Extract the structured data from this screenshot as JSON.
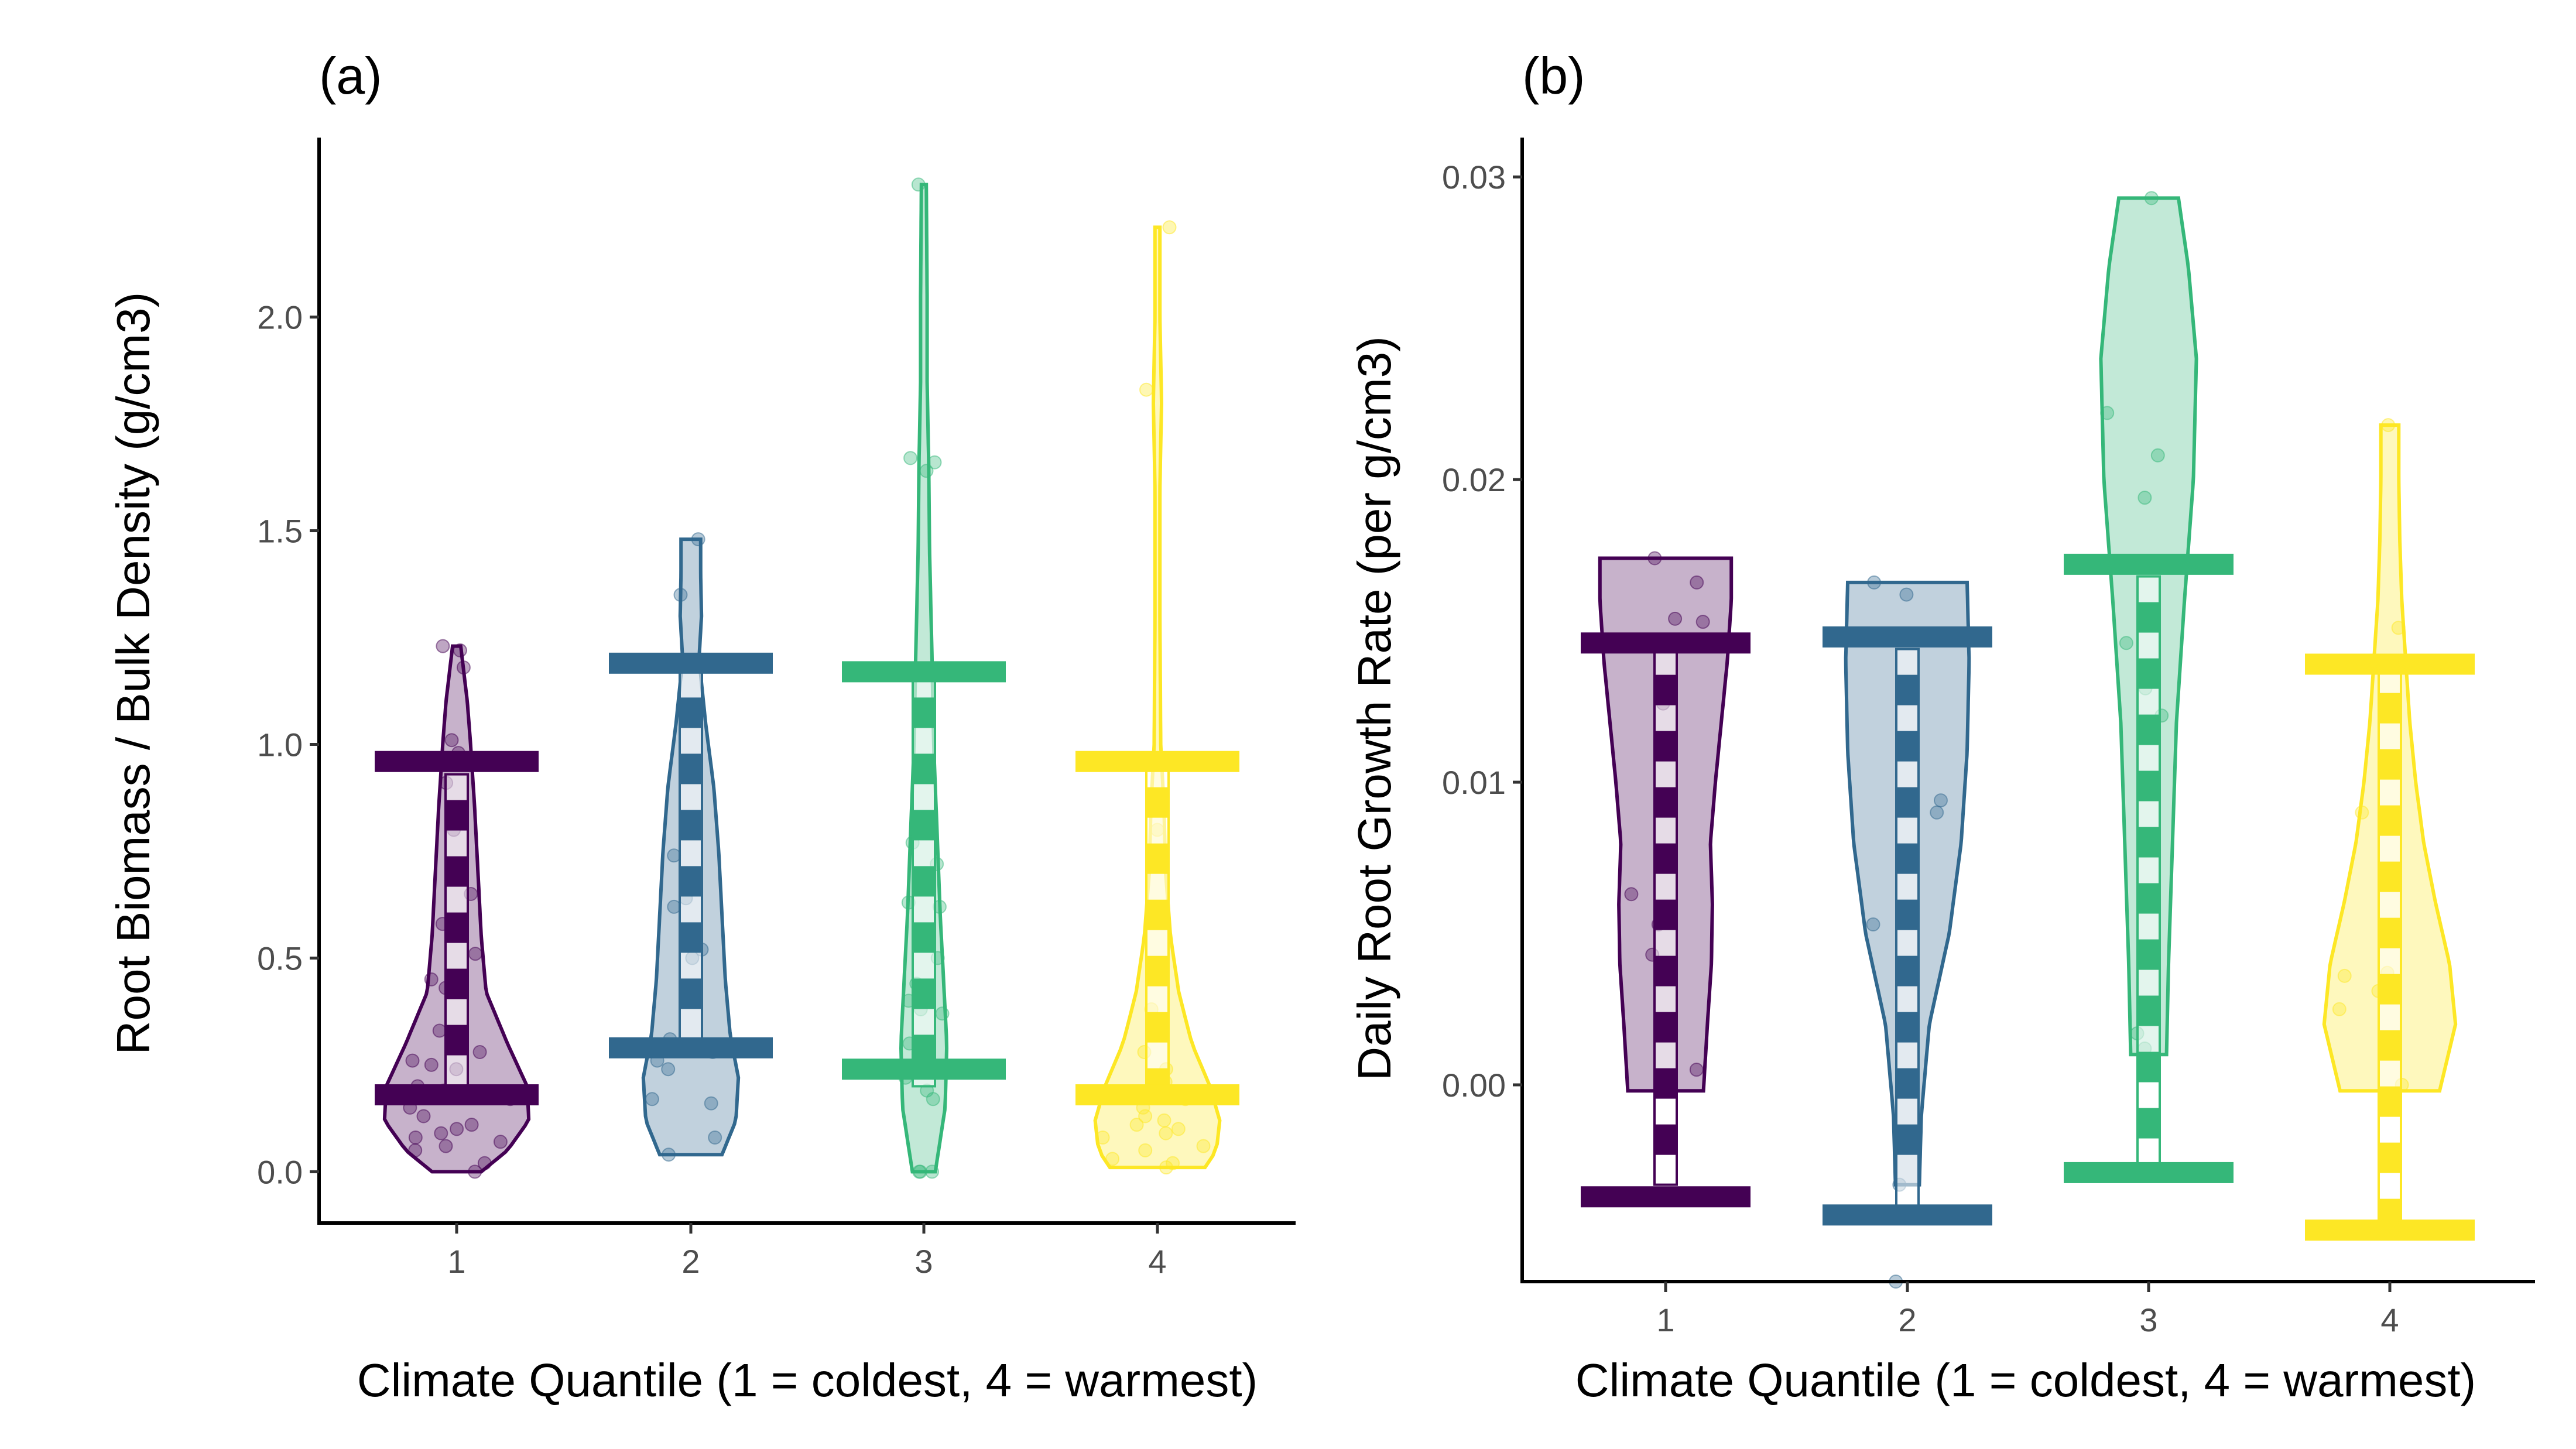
{
  "chart_data": [
    {
      "type": "violin",
      "panel_tag": "(a)",
      "xlabel": "Climate Quantile (1 = coldest, 4 = warmest)",
      "ylabel": "Root Biomass / Bulk Density (g/cm3)",
      "categories": [
        "1",
        "2",
        "3",
        "4"
      ],
      "yticks": [
        0.0,
        0.5,
        1.0,
        1.5,
        2.0
      ],
      "ytick_labels": [
        "0.0",
        "0.5",
        "1.0",
        "1.5",
        "2.0"
      ],
      "ylim": [
        -0.12,
        2.42
      ],
      "colors": [
        "#440154",
        "#31688e",
        "#35b779",
        "#fde725"
      ],
      "groups": [
        {
          "category": "1",
          "violin_min": 0.0,
          "violin_max": 1.23,
          "width_profile": [
            [
              0.0,
              0.3
            ],
            [
              0.05,
              0.62
            ],
            [
              0.12,
              0.88
            ],
            [
              0.2,
              0.86
            ],
            [
              0.3,
              0.62
            ],
            [
              0.42,
              0.36
            ],
            [
              0.55,
              0.3
            ],
            [
              0.7,
              0.26
            ],
            [
              0.85,
              0.22
            ],
            [
              1.0,
              0.17
            ],
            [
              1.1,
              0.13
            ],
            [
              1.23,
              0.05
            ]
          ],
          "whisker_low": 0.18,
          "whisker_high": 0.96,
          "box_low": 0.2,
          "box_high": 0.93,
          "points": [
            0.0,
            0.02,
            0.05,
            0.06,
            0.07,
            0.08,
            0.09,
            0.1,
            0.11,
            0.13,
            0.15,
            0.17,
            0.19,
            0.2,
            0.24,
            0.25,
            0.26,
            0.28,
            0.33,
            0.43,
            0.45,
            0.51,
            0.58,
            0.65,
            0.8,
            0.91,
            0.98,
            1.01,
            1.18,
            1.22,
            1.23
          ]
        },
        {
          "category": "2",
          "violin_min": 0.04,
          "violin_max": 1.48,
          "width_profile": [
            [
              0.04,
              0.38
            ],
            [
              0.12,
              0.55
            ],
            [
              0.22,
              0.58
            ],
            [
              0.32,
              0.48
            ],
            [
              0.45,
              0.42
            ],
            [
              0.6,
              0.38
            ],
            [
              0.75,
              0.34
            ],
            [
              0.9,
              0.28
            ],
            [
              1.05,
              0.18
            ],
            [
              1.2,
              0.1
            ],
            [
              1.3,
              0.13
            ],
            [
              1.4,
              0.12
            ],
            [
              1.48,
              0.12
            ]
          ],
          "whisker_low": 0.29,
          "whisker_high": 1.19,
          "box_low": 0.28,
          "box_high": 1.17,
          "points": [
            0.04,
            0.08,
            0.16,
            0.17,
            0.24,
            0.26,
            0.28,
            0.31,
            0.5,
            0.52,
            0.62,
            0.64,
            0.74,
            0.93,
            1.35,
            1.48
          ]
        },
        {
          "category": "3",
          "violin_min": 0.0,
          "violin_max": 2.31,
          "width_profile": [
            [
              0.0,
              0.14
            ],
            [
              0.15,
              0.26
            ],
            [
              0.3,
              0.28
            ],
            [
              0.45,
              0.24
            ],
            [
              0.6,
              0.2
            ],
            [
              0.8,
              0.16
            ],
            [
              1.0,
              0.12
            ],
            [
              1.2,
              0.1
            ],
            [
              1.45,
              0.07
            ],
            [
              1.65,
              0.06
            ],
            [
              1.85,
              0.04
            ],
            [
              2.05,
              0.04
            ],
            [
              2.31,
              0.03
            ]
          ],
          "whisker_low": 0.24,
          "whisker_high": 1.17,
          "box_low": 0.2,
          "box_high": 1.17,
          "points": [
            0.0,
            0.0,
            0.0,
            0.17,
            0.19,
            0.22,
            0.3,
            0.37,
            0.38,
            0.4,
            0.44,
            0.5,
            0.62,
            0.63,
            0.72,
            0.77,
            1.64,
            1.66,
            1.67,
            2.31
          ]
        },
        {
          "category": "4",
          "violin_min": 0.01,
          "violin_max": 2.21,
          "width_profile": [
            [
              0.01,
              0.58
            ],
            [
              0.05,
              0.72
            ],
            [
              0.12,
              0.76
            ],
            [
              0.2,
              0.64
            ],
            [
              0.3,
              0.42
            ],
            [
              0.42,
              0.26
            ],
            [
              0.55,
              0.16
            ],
            [
              0.7,
              0.1
            ],
            [
              0.85,
              0.08
            ],
            [
              1.0,
              0.04
            ],
            [
              1.3,
              0.03
            ],
            [
              1.6,
              0.03
            ],
            [
              1.8,
              0.05
            ],
            [
              2.0,
              0.03
            ],
            [
              2.21,
              0.03
            ]
          ],
          "whisker_low": 0.18,
          "whisker_high": 0.96,
          "box_low": 0.17,
          "box_high": 0.96,
          "points": [
            0.01,
            0.02,
            0.03,
            0.05,
            0.06,
            0.08,
            0.09,
            0.1,
            0.11,
            0.12,
            0.13,
            0.15,
            0.17,
            0.19,
            0.21,
            0.24,
            0.28,
            0.38,
            0.8,
            0.86,
            1.83,
            2.21
          ]
        }
      ]
    },
    {
      "type": "violin",
      "panel_tag": "(b)",
      "xlabel": "Climate Quantile (1 = coldest, 4 = warmest)",
      "ylabel": "Daily Root Growth Rate (per g/cm3)",
      "categories": [
        "1",
        "2",
        "3",
        "4"
      ],
      "yticks": [
        0.0,
        0.01,
        0.02,
        0.03
      ],
      "ytick_labels": [
        "0.00",
        "0.01",
        "0.02",
        "0.03"
      ],
      "ylim": [
        -0.0065,
        0.0313
      ],
      "colors": [
        "#440154",
        "#31688e",
        "#35b779",
        "#fde725"
      ],
      "groups": [
        {
          "category": "1",
          "violin_min": -0.0002,
          "violin_max": 0.0174,
          "width_profile": [
            [
              -0.0002,
              0.38
            ],
            [
              0.002,
              0.42
            ],
            [
              0.004,
              0.46
            ],
            [
              0.006,
              0.47
            ],
            [
              0.008,
              0.45
            ],
            [
              0.01,
              0.5
            ],
            [
              0.012,
              0.56
            ],
            [
              0.014,
              0.62
            ],
            [
              0.016,
              0.66
            ],
            [
              0.0174,
              0.66
            ]
          ],
          "whisker_low": -0.0037,
          "whisker_high": 0.0146,
          "box_low": -0.0033,
          "box_high": 0.0144,
          "points": [
            0.0005,
            0.0043,
            0.0053,
            0.0063,
            0.0126,
            0.0132,
            0.0153,
            0.0154,
            0.0166,
            0.0174
          ]
        },
        {
          "category": "2",
          "violin_min": -0.0033,
          "violin_max": 0.0166,
          "width_profile": [
            [
              -0.0033,
              0.12
            ],
            [
              -0.001,
              0.14
            ],
            [
              0.002,
              0.22
            ],
            [
              0.005,
              0.42
            ],
            [
              0.008,
              0.54
            ],
            [
              0.011,
              0.6
            ],
            [
              0.014,
              0.62
            ],
            [
              0.0166,
              0.6
            ]
          ],
          "whisker_low": -0.0043,
          "whisker_high": 0.0148,
          "box_low": -0.0041,
          "box_high": 0.0144,
          "points": [
            -0.0065,
            -0.0033,
            0.0053,
            0.009,
            0.0094,
            0.0162,
            0.0166
          ]
        },
        {
          "category": "3",
          "violin_min": 0.001,
          "violin_max": 0.0293,
          "width_profile": [
            [
              0.001,
              0.18
            ],
            [
              0.004,
              0.2
            ],
            [
              0.008,
              0.24
            ],
            [
              0.012,
              0.28
            ],
            [
              0.016,
              0.36
            ],
            [
              0.02,
              0.45
            ],
            [
              0.024,
              0.48
            ],
            [
              0.027,
              0.4
            ],
            [
              0.0293,
              0.3
            ]
          ],
          "whisker_low": -0.0029,
          "whisker_high": 0.0172,
          "box_low": -0.0029,
          "box_high": 0.0168,
          "points": [
            0.0012,
            0.0017,
            0.0122,
            0.0131,
            0.0146,
            0.0194,
            0.0208,
            0.0222,
            0.0293
          ]
        },
        {
          "category": "4",
          "violin_min": -0.0002,
          "violin_max": 0.0218,
          "width_profile": [
            [
              -0.0002,
              0.5
            ],
            [
              0.002,
              0.66
            ],
            [
              0.004,
              0.6
            ],
            [
              0.006,
              0.46
            ],
            [
              0.008,
              0.34
            ],
            [
              0.01,
              0.26
            ],
            [
              0.012,
              0.2
            ],
            [
              0.014,
              0.16
            ],
            [
              0.016,
              0.12
            ],
            [
              0.018,
              0.1
            ],
            [
              0.02,
              0.09
            ],
            [
              0.0218,
              0.09
            ]
          ],
          "whisker_low": -0.0048,
          "whisker_high": 0.0139,
          "box_low": -0.0048,
          "box_high": 0.0138,
          "points": [
            0.0,
            0.0025,
            0.0031,
            0.0036,
            0.0037,
            0.0087,
            0.009,
            0.0151,
            0.0218
          ]
        }
      ]
    }
  ]
}
